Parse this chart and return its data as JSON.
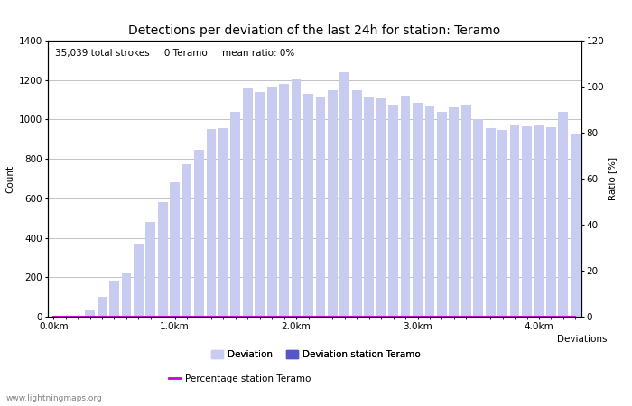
{
  "title": "Detections per deviation of the last 24h for station: Teramo",
  "xlabel": "Deviations",
  "ylabel_left": "Count",
  "ylabel_right": "Ratio [%]",
  "annotation": "35,039 total strokes     0 Teramo     mean ratio: 0%",
  "watermark": "www.lightningmaps.org",
  "bar_values": [
    2,
    5,
    5,
    30,
    100,
    180,
    220,
    370,
    480,
    580,
    680,
    775,
    845,
    950,
    955,
    1040,
    1160,
    1140,
    1165,
    1180,
    1205,
    1130,
    1110,
    1150,
    1240,
    1150,
    1110,
    1105,
    1075,
    1120,
    1085,
    1070,
    1040,
    1060,
    1075,
    1000,
    955,
    945,
    970,
    965,
    975,
    960,
    1040,
    930
  ],
  "station_values": [
    0,
    0,
    0,
    0,
    0,
    0,
    0,
    0,
    0,
    0,
    0,
    0,
    0,
    0,
    0,
    0,
    0,
    0,
    0,
    0,
    0,
    0,
    0,
    0,
    0,
    0,
    0,
    0,
    0,
    0,
    0,
    0,
    0,
    0,
    0,
    0,
    0,
    0,
    0,
    0,
    0,
    0,
    0,
    0
  ],
  "ratio_values": [
    0,
    0,
    0,
    0,
    0,
    0,
    0,
    0,
    0,
    0,
    0,
    0,
    0,
    0,
    0,
    0,
    0,
    0,
    0,
    0,
    0,
    0,
    0,
    0,
    0,
    0,
    0,
    0,
    0,
    0,
    0,
    0,
    0,
    0,
    0,
    0,
    0,
    0,
    0,
    0,
    0,
    0,
    0,
    0
  ],
  "n_bars": 44,
  "ylim_left": [
    0,
    1400
  ],
  "ylim_right": [
    0,
    120
  ],
  "yticks_left": [
    0,
    200,
    400,
    600,
    800,
    1000,
    1200,
    1400
  ],
  "yticks_right": [
    0,
    20,
    40,
    60,
    80,
    100,
    120
  ],
  "bar_color": "#c8ccf0",
  "station_bar_color": "#5555cc",
  "ratio_line_color": "#cc00cc",
  "grid_color": "#aaaaaa",
  "bg_color": "#ffffff",
  "title_fontsize": 10,
  "label_fontsize": 7.5,
  "tick_fontsize": 7.5,
  "annotation_fontsize": 7.5,
  "watermark_fontsize": 6.5
}
